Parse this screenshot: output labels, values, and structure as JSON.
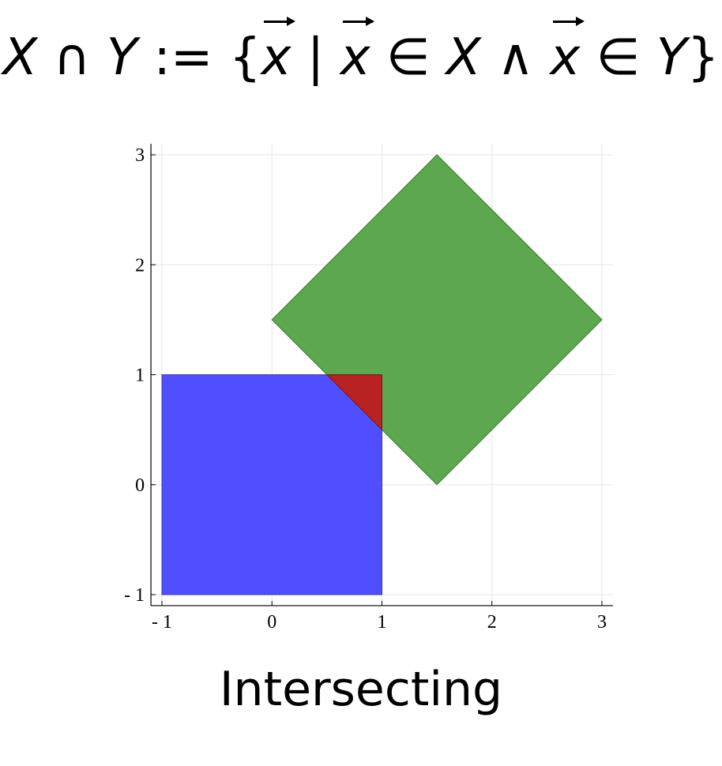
{
  "formula": {
    "lhs_set_a": "X",
    "intersect_symbol": "∩",
    "lhs_set_b": "Y",
    "define_symbol": ":=",
    "open_brace": "{",
    "vector_1": "x",
    "bar": "|",
    "vector_2": "x",
    "member_symbol_1": "∈",
    "rhs_set_a": "X",
    "and_symbol": "∧",
    "vector_3": "x",
    "member_symbol_2": "∈",
    "rhs_set_b": "Y",
    "close_brace": "}"
  },
  "caption": "Intersecting",
  "chart_data": {
    "type": "area",
    "xlim": [
      -1.1,
      3.1
    ],
    "ylim": [
      -1.1,
      3.1
    ],
    "x_ticks": [
      -1,
      0,
      1,
      2,
      3
    ],
    "y_ticks": [
      -1,
      0,
      1,
      2,
      3
    ],
    "x_tick_labels": [
      "- 1",
      "0",
      "1",
      "2",
      "3"
    ],
    "y_tick_labels": [
      "- 1",
      "0",
      "1",
      "2",
      "3"
    ],
    "grid": true,
    "shapes": [
      {
        "id": "square",
        "fill": "#4f4fff",
        "stroke": "#3a3ab0",
        "vertices": [
          [
            -1,
            -1
          ],
          [
            1,
            -1
          ],
          [
            1,
            1
          ],
          [
            -1,
            1
          ]
        ]
      },
      {
        "id": "diamond",
        "fill": "#5da84f",
        "stroke": "#3d7a35",
        "vertices": [
          [
            1.5,
            0
          ],
          [
            3,
            1.5
          ],
          [
            1.5,
            3
          ],
          [
            0,
            1.5
          ]
        ]
      },
      {
        "id": "intersection",
        "fill": "#b92222",
        "stroke": "#7a1515",
        "vertices": [
          [
            0.5,
            1
          ],
          [
            1,
            1
          ],
          [
            1,
            0.5
          ]
        ]
      }
    ]
  }
}
